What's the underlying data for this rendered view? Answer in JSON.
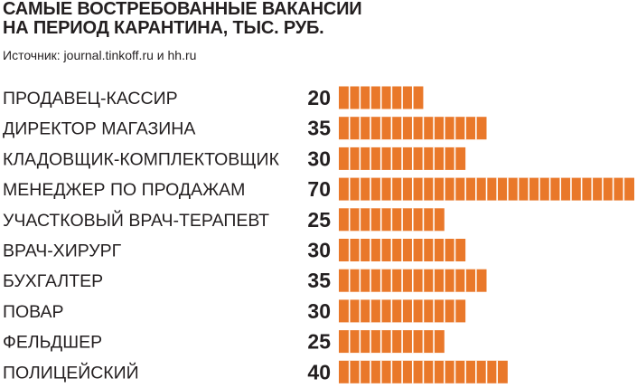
{
  "header": {
    "title_line1": "САМЫЕ ВОСТРЕБОВАННЫЕ ВАКАНСИИ",
    "title_line2": "НА ПЕРИОД КАРАНТИНА, ТЫС. РУБ.",
    "source": "Источник: journal.tinkoff.ru и hh.ru"
  },
  "colors": {
    "bar": "#e9782a",
    "text": "#231f20",
    "background": "#ffffff"
  },
  "chart_data": {
    "type": "bar",
    "orientation": "horizontal",
    "title": "САМЫЕ ВОСТРЕБОВАННЫЕ ВАКАНСИИ НА ПЕРИОД КАРАНТИНА, ТЫС. РУБ.",
    "categories": [
      "ПРОДАВЕЦ-КАССИР",
      "ДИРЕКТОР МАГАЗИНА",
      "КЛАДОВЩИК-КОМПЛЕКТОВЩИК",
      "МЕНЕДЖЕР ПО ПРОДАЖАМ",
      "УЧАСТКОВЫЙ ВРАЧ-ТЕРАПЕВТ",
      "ВРАЧ-ХИРУРГ",
      "БУХГАЛТЕР",
      "ПОВАР",
      "ФЕЛЬДШЕР",
      "ПОЛИЦЕЙСКИЙ"
    ],
    "values": [
      20,
      35,
      30,
      70,
      25,
      30,
      35,
      30,
      25,
      40
    ],
    "xlim": [
      0,
      70
    ],
    "segment_value": 2.5,
    "grid": false,
    "legend": "none"
  }
}
